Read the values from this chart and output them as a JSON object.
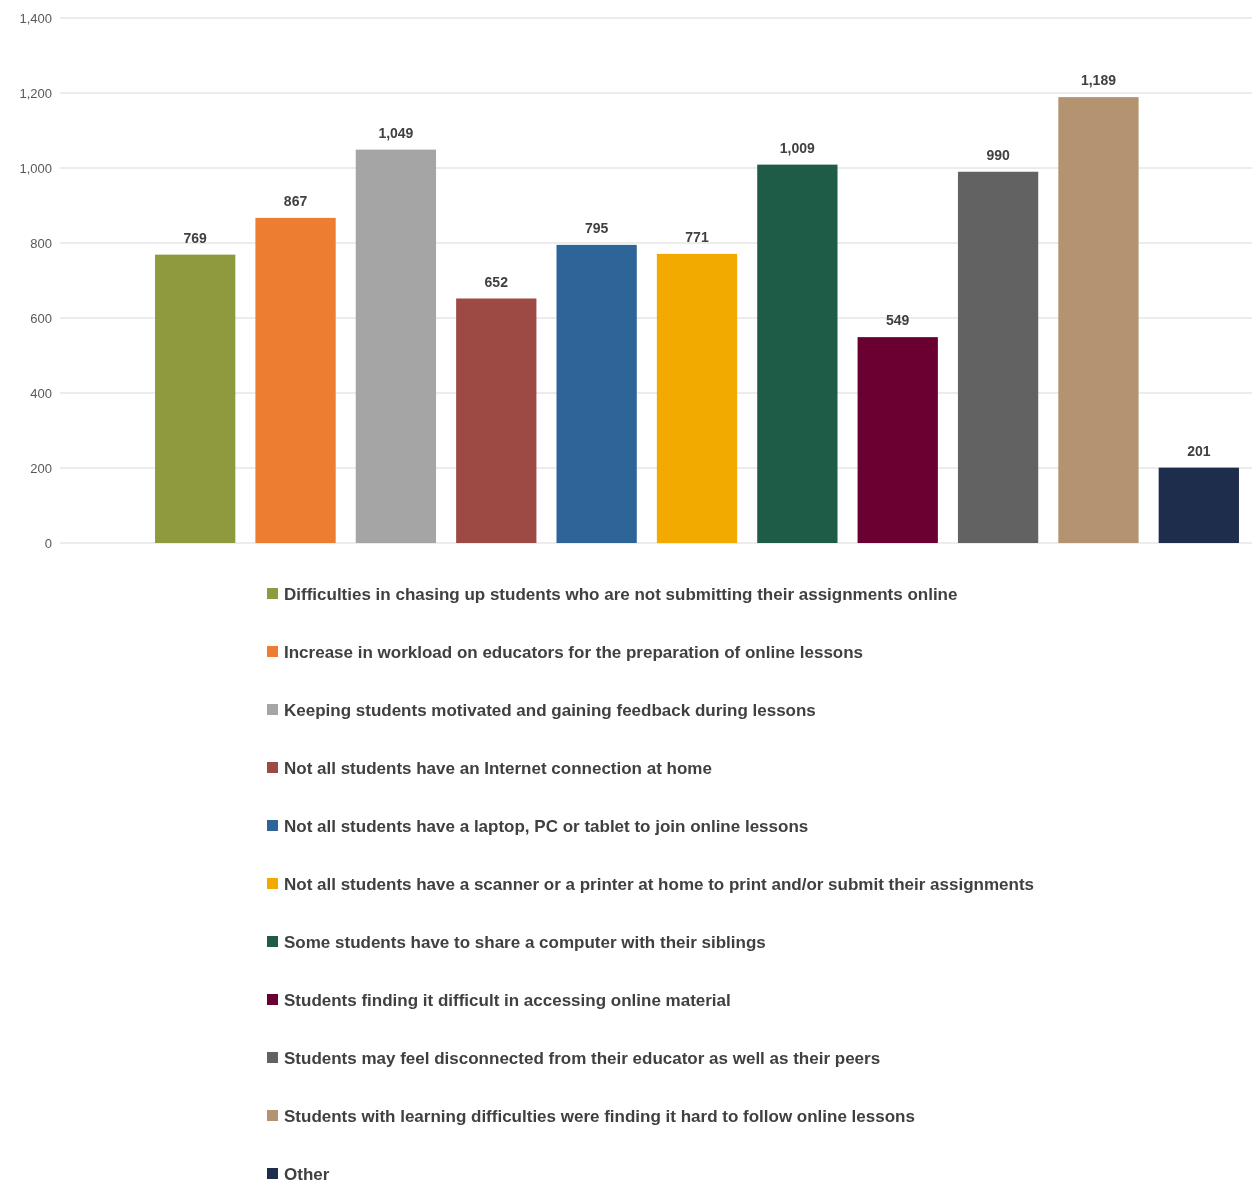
{
  "chart_data": {
    "type": "bar",
    "categories": [
      null
    ],
    "series": [
      {
        "name": "Difficulties in chasing up students who are not submitting their assignments online",
        "color": "#8f9a3e",
        "values": [
          769
        ],
        "value_labels": [
          "769"
        ]
      },
      {
        "name": "Increase in workload on educators for the preparation of online lessons",
        "color": "#ed7d31",
        "values": [
          867
        ],
        "value_labels": [
          "867"
        ]
      },
      {
        "name": "Keeping students motivated and gaining feedback during lessons",
        "color": "#a5a5a5",
        "values": [
          1049
        ],
        "value_labels": [
          "1,049"
        ]
      },
      {
        "name": "Not all students have an Internet connection at home",
        "color": "#9e4a44",
        "values": [
          652
        ],
        "value_labels": [
          "652"
        ]
      },
      {
        "name": "Not all students have a laptop, PC or tablet to join online lessons",
        "color": "#2e6599",
        "values": [
          795
        ],
        "value_labels": [
          "795"
        ]
      },
      {
        "name": "Not all students have a scanner or a printer at home to print and/or submit their assignments",
        "color": "#f2a900",
        "values": [
          771
        ],
        "value_labels": [
          "771"
        ]
      },
      {
        "name": "Some students have to share a computer with their siblings",
        "color": "#1e5c47",
        "values": [
          1009
        ],
        "value_labels": [
          "1,009"
        ]
      },
      {
        "name": "Students finding it difficult in accessing online material",
        "color": "#6a0032",
        "values": [
          549
        ],
        "value_labels": [
          "549"
        ]
      },
      {
        "name": "Students may feel disconnected from their educator as well as their peers",
        "color": "#626262",
        "values": [
          990
        ],
        "value_labels": [
          "990"
        ]
      },
      {
        "name": "Students with learning difficulties were finding it hard to follow online lessons",
        "color": "#b39370",
        "values": [
          1189
        ],
        "value_labels": [
          "1,189"
        ]
      },
      {
        "name": "Other",
        "color": "#1f2d4d",
        "values": [
          201
        ],
        "value_labels": [
          "201"
        ]
      }
    ],
    "ylim": [
      0,
      1400
    ],
    "yticks": [
      0,
      200,
      400,
      600,
      800,
      {
        "value": 1000,
        "label": "1,000"
      },
      {
        "value": 1200,
        "label": "1,200"
      },
      {
        "value": 1400,
        "label": "1,400"
      }
    ],
    "grid": "y",
    "legend": "bottom"
  }
}
